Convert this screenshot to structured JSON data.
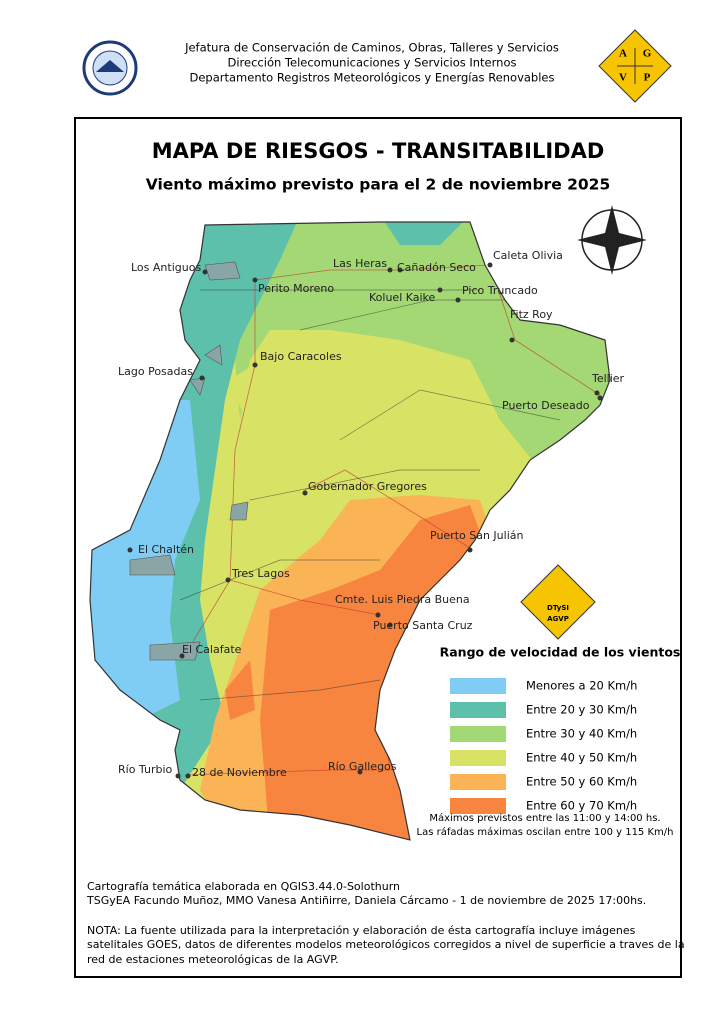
{
  "header": {
    "lines": [
      "Jefatura de Conservación de Caminos, Obras, Talleres y Servicios",
      "Dirección Telecomunicaciones y Servicios Internos",
      "Departamento Registros Meteorológicos y Energías Renovables"
    ],
    "logo_letters": [
      "A",
      "G",
      "V",
      "P"
    ]
  },
  "title": "MAPA DE RIESGOS - TRANSITABILIDAD",
  "subtitle": "Viento máximo previsto para el 2 de noviembre 2025",
  "map": {
    "places": [
      "Los Antiguos",
      "Perito Moreno",
      "Las Heras",
      "Cañadón Seco",
      "Caleta Olivia",
      "Koluel Kaike",
      "Pico Truncado",
      "Fitz Roy",
      "Lago Posadas",
      "Bajo Caracoles",
      "Tellier",
      "Puerto Deseado",
      "Gobernador Gregores",
      "Puerto San Julián",
      "El Chaltén",
      "Tres Lagos",
      "Cmte. Luis Piedra Buena",
      "Puerto Santa Cruz",
      "El Calafate",
      "Río Turbio",
      "28 de Noviembre",
      "Río Gallegos"
    ],
    "badge": [
      "DTySI",
      "AGVP"
    ]
  },
  "legend": {
    "title": "Rango de velocidad de los vientos",
    "items": [
      {
        "label": "Menores a 20 Km/h",
        "color": "#7fcdf5"
      },
      {
        "label": "Entre 20 y 30 Km/h",
        "color": "#5cc0aa"
      },
      {
        "label": "Entre 30 y 40 Km/h",
        "color": "#a4d874"
      },
      {
        "label": "Entre 40 y 50 Km/h",
        "color": "#d8e264"
      },
      {
        "label": "Entre 50 y 60 Km/h",
        "color": "#fbb455"
      },
      {
        "label": "Entre 60 y 70 Km/h",
        "color": "#f7853f"
      }
    ],
    "notes": [
      "Máximos previstos entre las 11:00 y 14:00 hs.",
      "Las ráfadas máximas oscilan entre 100 y 115 Km/h"
    ]
  },
  "footer": {
    "credits": [
      "Cartografía temática elaborada en QGIS3.44.0-Solothurn",
      "TSGyEA Facundo Muñoz, MMO Vanesa Antiñirre, Daniela Cárcamo - 1 de noviembre de 2025 17:00hs."
    ],
    "note": [
      "NOTA: La fuente utilizada para la interpretación y elaboración de ésta cartografía incluye imágenes",
      "satelitales GOES, datos de diferentes modelos meteorológicos corregidos a nivel de superficie a traves de la",
      "red de estaciones meteorológicas de la AGVP."
    ]
  }
}
